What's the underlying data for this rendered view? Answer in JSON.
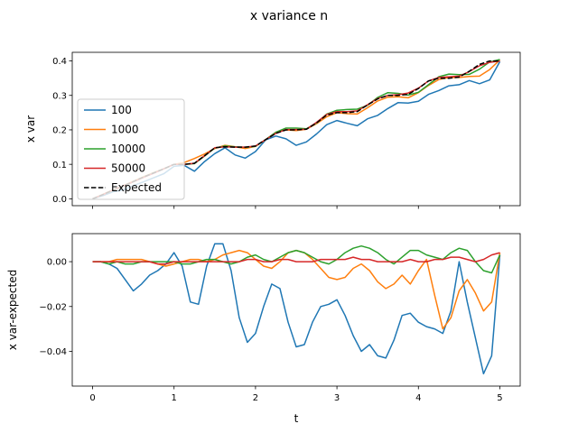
{
  "figure": {
    "title": "x variance n",
    "xlabel": "t"
  },
  "colors": {
    "s100": "#1f77b4",
    "s1000": "#ff7f0e",
    "s10000": "#2ca02c",
    "s50000": "#d62728",
    "expected": "#000000"
  },
  "chart_data": [
    {
      "type": "line",
      "ylabel": "x var",
      "xlim": [
        -0.25,
        5.25
      ],
      "ylim": [
        -0.02,
        0.425
      ],
      "xticks": [
        0,
        1,
        2,
        3,
        4,
        5
      ],
      "yticks": [
        0.0,
        0.1,
        0.2,
        0.3,
        0.4
      ],
      "ytick_labels": [
        "0.0",
        "0.1",
        "0.2",
        "0.3",
        "0.4"
      ],
      "show_xtick_labels": false,
      "legend": "center-left",
      "x": [
        0,
        0.125,
        0.25,
        0.375,
        0.5,
        0.625,
        0.75,
        0.875,
        1,
        1.125,
        1.25,
        1.375,
        1.5,
        1.625,
        1.75,
        1.875,
        2,
        2.125,
        2.25,
        2.375,
        2.5,
        2.625,
        2.75,
        2.875,
        3,
        3.125,
        3.25,
        3.375,
        3.5,
        3.625,
        3.75,
        3.875,
        4,
        4.125,
        4.25,
        4.375,
        4.5,
        4.625,
        4.75,
        4.875,
        5
      ],
      "series": [
        {
          "name": "100",
          "color_key": "s100",
          "dash": false,
          "values": [
            0,
            0.009,
            0.02,
            0.026,
            0.038,
            0.049,
            0.061,
            0.073,
            0.094,
            0.097,
            0.08,
            0.108,
            0.131,
            0.148,
            0.127,
            0.118,
            0.137,
            0.171,
            0.182,
            0.174,
            0.155,
            0.165,
            0.188,
            0.215,
            0.227,
            0.219,
            0.212,
            0.232,
            0.242,
            0.262,
            0.279,
            0.278,
            0.283,
            0.303,
            0.314,
            0.328,
            0.331,
            0.343,
            0.334,
            0.345,
            0.398
          ]
        },
        {
          "name": "1000",
          "color_key": "s1000",
          "dash": false,
          "values": [
            0,
            0.013,
            0.026,
            0.038,
            0.051,
            0.064,
            0.076,
            0.087,
            0.1,
            0.105,
            0.117,
            0.13,
            0.146,
            0.155,
            0.151,
            0.146,
            0.152,
            0.172,
            0.193,
            0.2,
            0.198,
            0.202,
            0.218,
            0.238,
            0.25,
            0.247,
            0.246,
            0.264,
            0.284,
            0.295,
            0.296,
            0.293,
            0.308,
            0.329,
            0.346,
            0.352,
            0.352,
            0.355,
            0.356,
            0.375,
            0.403
          ]
        },
        {
          "name": "10000",
          "color_key": "s10000",
          "dash": false,
          "values": [
            0,
            0.012,
            0.024,
            0.036,
            0.049,
            0.063,
            0.075,
            0.087,
            0.1,
            0.1,
            0.102,
            0.124,
            0.147,
            0.153,
            0.151,
            0.149,
            0.152,
            0.172,
            0.193,
            0.205,
            0.205,
            0.203,
            0.22,
            0.246,
            0.257,
            0.259,
            0.26,
            0.271,
            0.294,
            0.308,
            0.306,
            0.301,
            0.309,
            0.331,
            0.354,
            0.362,
            0.36,
            0.361,
            0.376,
            0.397,
            0.404
          ]
        },
        {
          "name": "50000",
          "color_key": "s50000",
          "dash": false,
          "values": [
            0,
            0.012,
            0.025,
            0.037,
            0.049,
            0.062,
            0.074,
            0.087,
            0.1,
            0.1,
            0.103,
            0.125,
            0.148,
            0.151,
            0.15,
            0.15,
            0.153,
            0.172,
            0.19,
            0.201,
            0.201,
            0.202,
            0.222,
            0.245,
            0.253,
            0.253,
            0.255,
            0.273,
            0.291,
            0.3,
            0.302,
            0.307,
            0.321,
            0.342,
            0.352,
            0.354,
            0.356,
            0.369,
            0.386,
            0.396,
            0.4
          ]
        },
        {
          "name": "Expected",
          "color_key": "expected",
          "dash": true,
          "values": [
            0,
            0.012,
            0.025,
            0.037,
            0.05,
            0.063,
            0.075,
            0.087,
            0.1,
            0.1,
            0.103,
            0.125,
            0.148,
            0.151,
            0.15,
            0.15,
            0.153,
            0.172,
            0.19,
            0.2,
            0.2,
            0.202,
            0.22,
            0.243,
            0.25,
            0.25,
            0.253,
            0.272,
            0.29,
            0.3,
            0.3,
            0.303,
            0.32,
            0.342,
            0.35,
            0.35,
            0.353,
            0.37,
            0.39,
            0.4,
            0.4
          ]
        }
      ]
    },
    {
      "type": "line",
      "ylabel": "x var-expected",
      "xlim": [
        -0.25,
        5.25
      ],
      "ylim": [
        -0.0555,
        0.0125
      ],
      "xticks": [
        0,
        1,
        2,
        3,
        4,
        5
      ],
      "xtick_labels": [
        "0",
        "1",
        "2",
        "3",
        "4",
        "5"
      ],
      "yticks": [
        -0.04,
        -0.02,
        0.0
      ],
      "ytick_labels": [
        "−0.04",
        "−0.02",
        "0.00"
      ],
      "x": [
        0,
        0.1,
        0.2,
        0.3,
        0.4,
        0.5,
        0.6,
        0.7,
        0.8,
        0.9,
        1,
        1.1,
        1.2,
        1.3,
        1.4,
        1.5,
        1.6,
        1.7,
        1.8,
        1.9,
        2,
        2.1,
        2.2,
        2.3,
        2.4,
        2.5,
        2.6,
        2.7,
        2.8,
        2.9,
        3,
        3.1,
        3.2,
        3.3,
        3.4,
        3.5,
        3.6,
        3.7,
        3.8,
        3.9,
        4,
        4.1,
        4.2,
        4.3,
        4.4,
        4.5,
        4.6,
        4.7,
        4.8,
        4.9,
        5
      ],
      "series": [
        {
          "name": "100",
          "color_key": "s100",
          "values": [
            0,
            0,
            -0.001,
            -0.003,
            -0.008,
            -0.013,
            -0.01,
            -0.006,
            -0.004,
            -0.001,
            0.004,
            -0.002,
            -0.018,
            -0.019,
            -0.002,
            0.008,
            0.008,
            -0.004,
            -0.025,
            -0.036,
            -0.032,
            -0.02,
            -0.01,
            -0.012,
            -0.027,
            -0.038,
            -0.037,
            -0.027,
            -0.02,
            -0.019,
            -0.017,
            -0.024,
            -0.033,
            -0.04,
            -0.037,
            -0.042,
            -0.043,
            -0.035,
            -0.024,
            -0.023,
            -0.027,
            -0.029,
            -0.03,
            -0.032,
            -0.022,
            0,
            -0.018,
            -0.034,
            -0.05,
            -0.042,
            0.003
          ]
        },
        {
          "name": "1000",
          "color_key": "s1000",
          "values": [
            0,
            0,
            0,
            0.001,
            0.001,
            0.001,
            0.001,
            0,
            -0.001,
            -0.002,
            -0.001,
            0,
            0.001,
            0.001,
            0,
            0.001,
            0.003,
            0.004,
            0.005,
            0.004,
            0.001,
            -0.002,
            -0.003,
            0,
            0.004,
            0.005,
            0.004,
            0.001,
            -0.003,
            -0.007,
            -0.008,
            -0.007,
            -0.003,
            -0.001,
            -0.004,
            -0.009,
            -0.012,
            -0.01,
            -0.006,
            -0.01,
            -0.004,
            0.001,
            -0.015,
            -0.03,
            -0.025,
            -0.013,
            -0.008,
            -0.014,
            -0.022,
            -0.018,
            0.004
          ]
        },
        {
          "name": "10000",
          "color_key": "s10000",
          "values": [
            0,
            0,
            -0.001,
            0,
            -0.001,
            -0.001,
            0,
            0,
            0,
            0,
            0,
            -0.001,
            -0.001,
            0,
            0.001,
            0.001,
            0,
            -0.001,
            0,
            0.002,
            0.003,
            0.001,
            0,
            0.002,
            0.004,
            0.005,
            0.004,
            0.002,
            0,
            -0.001,
            0.001,
            0.004,
            0.006,
            0.007,
            0.006,
            0.004,
            0.001,
            -0.001,
            0.002,
            0.005,
            0.005,
            0.003,
            0.002,
            0.001,
            0.004,
            0.006,
            0.005,
            0,
            -0.004,
            -0.005,
            0.003
          ]
        },
        {
          "name": "50000",
          "color_key": "s50000",
          "values": [
            0,
            0,
            0,
            0,
            0,
            0,
            0,
            0,
            -0.001,
            -0.001,
            0,
            0,
            0,
            0,
            0,
            0,
            0,
            0,
            0,
            0.001,
            0.001,
            0,
            0,
            0.001,
            0.001,
            0,
            0,
            0,
            0.001,
            0.001,
            0.001,
            0.001,
            0.002,
            0.001,
            0.001,
            0,
            0,
            0,
            0,
            0.001,
            0,
            0,
            0.001,
            0.001,
            0.002,
            0.002,
            0.001,
            0,
            0.001,
            0.003,
            0.004
          ]
        }
      ]
    }
  ]
}
